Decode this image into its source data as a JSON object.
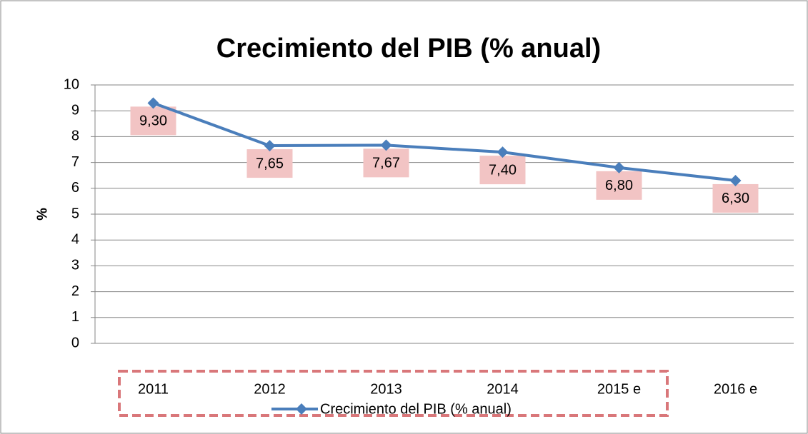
{
  "chart_data": {
    "type": "line",
    "title": "Crecimiento del PIB (% anual)",
    "y_label": "%",
    "categories": [
      "2011",
      "2012",
      "2013",
      "2014",
      "2015 e",
      "2016 e"
    ],
    "series": [
      {
        "name": "Crecimiento del PIB (% anual)",
        "color": "#4a7ebb",
        "values": [
          9.3,
          7.65,
          7.67,
          7.4,
          6.8,
          6.3
        ],
        "value_labels": [
          "9,30",
          "7,65",
          "7,67",
          "7,40",
          "6,80",
          "6,30"
        ]
      }
    ],
    "ylim": [
      0,
      10
    ],
    "yticks": [
      0,
      1,
      2,
      3,
      4,
      5,
      6,
      7,
      8,
      9,
      10
    ],
    "grid": true,
    "legend": "bottom"
  }
}
